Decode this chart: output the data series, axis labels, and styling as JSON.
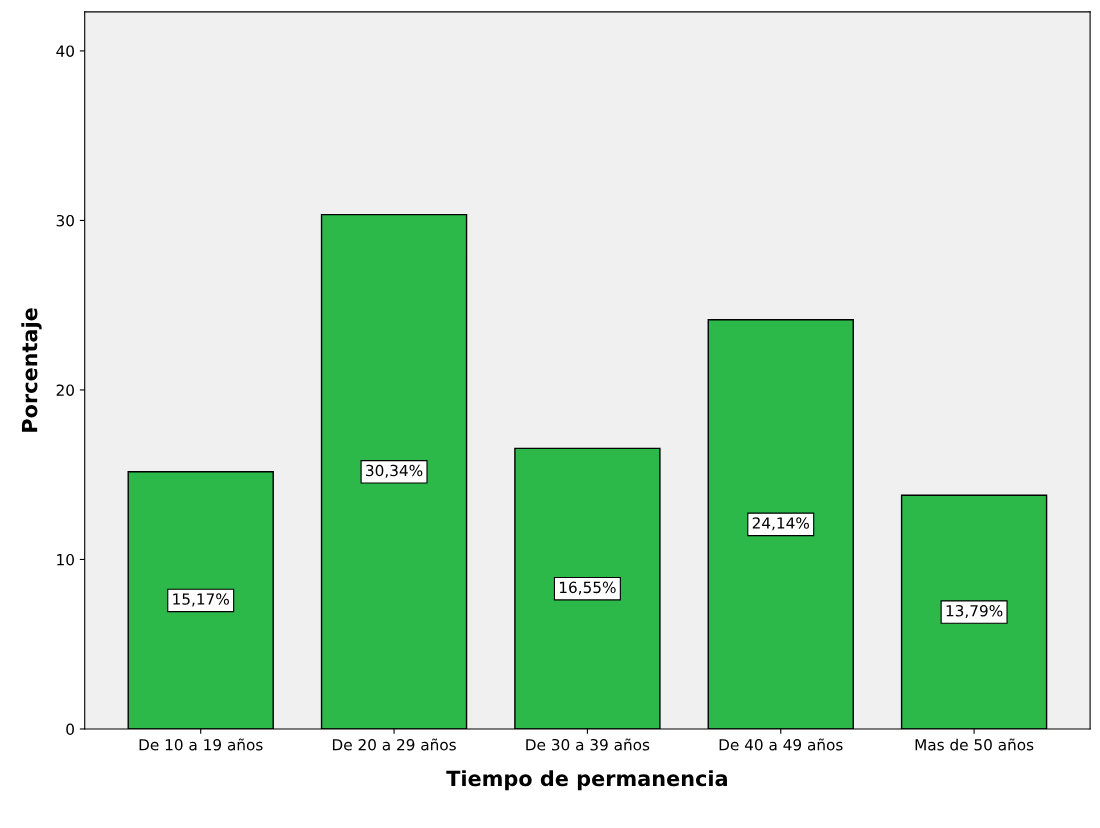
{
  "chart_data": {
    "type": "bar",
    "xlabel": "Tiempo de permanencia",
    "ylabel": "Porcentaje",
    "categories": [
      "De 10 a 19 años",
      "De 20 a 29 años",
      "De 30 a 39 años",
      "De 40 a 49 años",
      "Mas de 50 años"
    ],
    "values": [
      15.17,
      30.34,
      16.55,
      24.14,
      13.79
    ],
    "value_labels": [
      "15,17%",
      "30,34%",
      "16,55%",
      "24,14%",
      "13,79%"
    ],
    "color": "#2db84a",
    "ylim": [
      0,
      42.3
    ],
    "yticks": [
      0,
      10,
      20,
      30,
      40
    ],
    "grid": false
  }
}
